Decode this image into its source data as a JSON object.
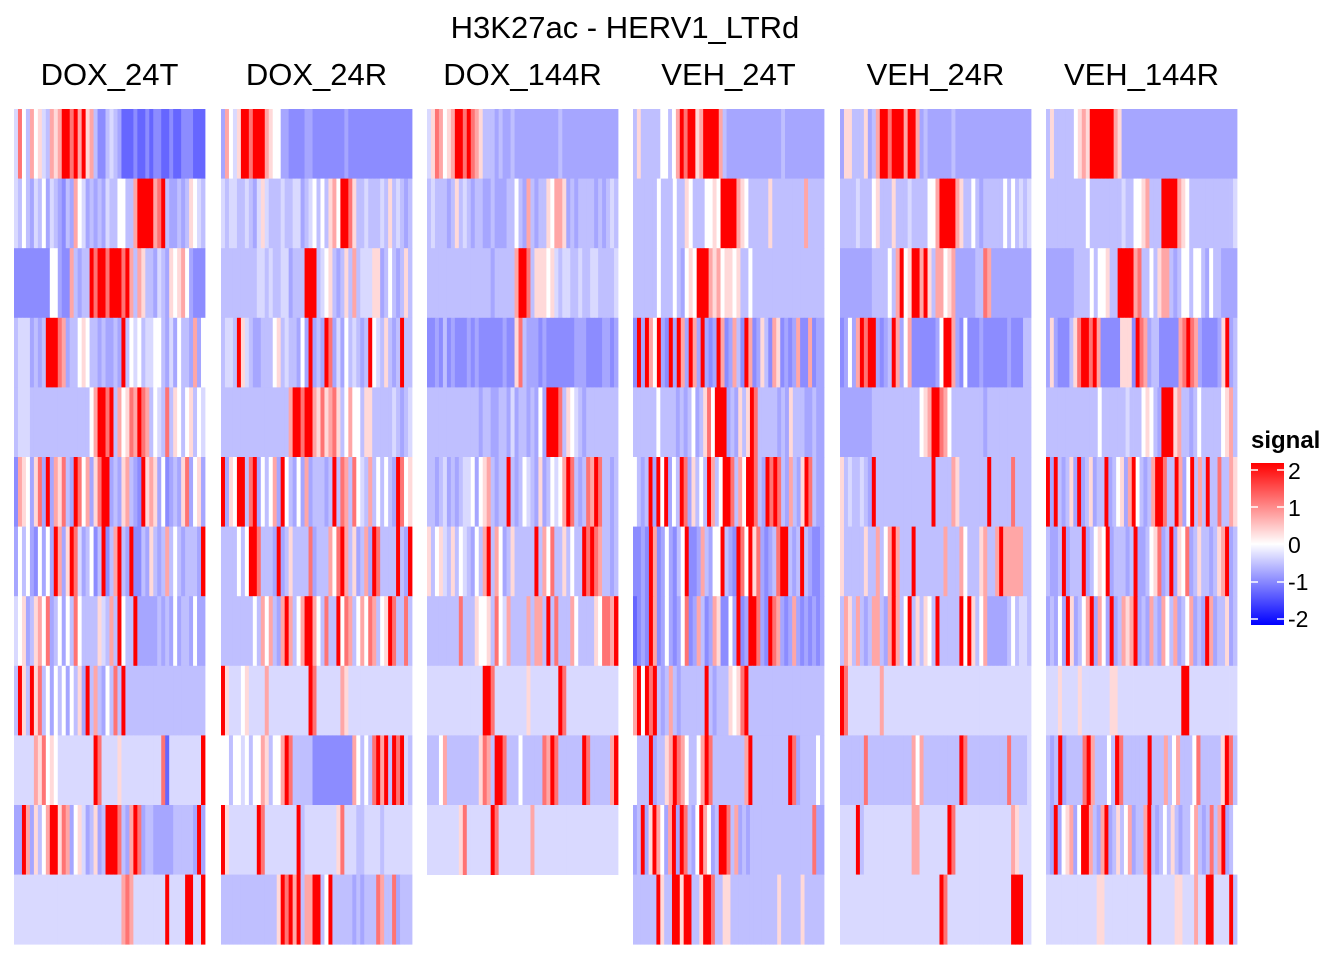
{
  "chart_data": {
    "type": "heatmap",
    "title": "H3K27ac - HERV1_LTRd",
    "legend": {
      "title": "signal",
      "ticks": [
        "2",
        "1",
        "0",
        "-1",
        "-2"
      ],
      "range": [
        -2,
        2
      ],
      "colors": {
        "low": "#0000ff",
        "mid": "#ffffff",
        "high": "#ff0000"
      },
      "placement": "right"
    },
    "level_codes": {
      "a": -1.2,
      "b": -0.9,
      "c": -0.7,
      "d": -0.5,
      "e": -0.3,
      "w": 0,
      "f": 0.3,
      "g": 0.7,
      "h": 1.1,
      "r": 2
    },
    "panels": [
      {
        "name": "DOX_24T",
        "rows": [
          "ehwdgwfedgfgrrhrgrfgdbbdedcaaabaababbaabaabbbaaa",
          "edwdcedwcedcbdcgwecdcdceddwwddgrrrrghrdccdcdfwed",
          "bbbbbbbbbwwcbbgdcddrhrrhrrrhrgdgfddcedcfwfgwcbbb",
          "deeecdcdrrrhgcddwfwddcdccdcrdwewdeewwdcecwddcgcw",
          "deeedddddddddddddddwgrrhrdgwfhgrhgdwedhdfwdwfdwe",
          "bgfwcfhcrcgfhdcrhwgcfhrrcdcfgdcbrfgfcwbcdcfhcwfc",
          "cwdwcbwcwcrgcfrhecdwbdrbdgrdcrbbdcfdcdgdwdcdddcr",
          "ewfcdfgwhcdwcwdhwddddfedgdrwddrcccccdcdcwcddcwcc",
          "drfdrfhdwcwdwcwdfcrdgdcwdhdrdddddddddddddddddddd",
          "eeeeegfhwfweeeeeeeeerheeeefeeeeeeeeeehaeeeeeeeer",
          "ccrgcfdwgrrfhgcwfecdfcdrrrhdcgrhcddcccccdddddcrc",
          "eeeeeeeeeeeeeeeeeeeeeeeeeeeghgeeeeeeeereeeerreer"
        ]
      },
      {
        "name": "DOX_24R",
        "rows": [
          "cgwefrrhrrrgfwwccbbbbccbbbbbbbbcbbbbbbbbbbbbbbbb",
          "edeeddedcefedddeddeecdewdwdfgwrrhfddedddedfdedcd",
          "dddddddddeededdeecdddrrrdewfdcdfdgdeeeffcdwdcdfd",
          "deedrfedccdddwfdeddcwcrcdcrhcecwdedcdrwedfdcdrdd",
          "dddddddddddddddddgrrhrrgfhfghfdwgwwdffdddddedcde",
          "rcfwrrdhrcwdwgcrwdcwcgcdddcdrdhgdhwedgdwdwdcrhwf",
          "ddddwdwrrhdddcrcdfddddhcdddgwhrgdfcdgcrhddddrdcr",
          "ddddddddwdgwgdcgrgdwgrrgwdhddrwhgdwgwhgdwfrhddhd",
          "rfeeewfeeeegeeeeeeeeeerheeeeeegfeeeeeeeeeeeeeeee",
          "wwdwwewdwwgfdwwgrhdddddbbbbbbbbbbgwdwdhrgrdrhred",
          "rfeeeeeeerheeeeeeeerdeeeeeeeefheeeddeeeedeeeeeee",
          "ddddddddddddddfrhrgrdggrrdwrdddddcdcdddhgddhcddd"
        ]
      },
      {
        "name": "DOX_144R",
        "rows": [
          "efhgwfgrrhrhgfdddcdccdcccccccccccdcccccccccccccc",
          "dedddcdfdedcddccdcccddwdcgdcddfwggfcdcddddcdcded",
          "ddddddddddddddddcdddddgrrhdfffwfedeeddeddeedddde",
          "bbcbdbcbbbcbcbbbbbbcbbfhdcccbcbbbbbbbcccbbbbccbc",
          "dddddddddddddcddccddcecddcdcwcrrrhdfwedcdddddddd",
          "ddcdecdcdeewcwfgdcddrdcdwedcfcdwewgrhdcdhgrhddcd",
          "fdwfedfdwedcwdgrdgwcdfdddddrdgwhddfdwddrhrhgddcd",
          "ddddddddhdddfwwfdhwegddddgdggdrdhdddgwddddfwhhgr",
          "eeeeeeeeeeeeeerrheeeeeeeefeeeeeeerheeeeeeeeeeeee",
          "dddwgddddddddfhgdrrhdddwdddddhgrhddddddrhdddddgr",
          "eeeeeeeefheeeeeerheeeeeeeegeeeeeeeeeeeeeeeeeeeee"
        ]
      },
      {
        "name": "VEH_24T",
        "rows": [
          "dfdddddwwdwgrhrrfgrrrrgdccccccccccccccdcccccccccc",
          "ddddddwdddwddfwdddwwfwrrrrgfwdddddfddddddddgdddd",
          "ddddddwdddwdcwfwrrrgfgwffwfddwdddddddddddddddddd",
          "brcrgwrcbrcrgcrgcrcbcrgbcgdbrgbcfdbgfbcbcgbbgbcc",
          "ddddddwddddcdcdwcdfhwrrrcdcfdfrhdddddcdcfdddccdcc",
          "wdcdrcrwrcwdrhcfdwdrgdwrrhdgwrrhdcrhrhdcgdcfrhdcc",
          "bbcbrgbcwcbdwrbbcgdcwwrdcbrhwrfhcbcdhrrdcdrdcbbc",
          "abcbrgbcwcbcwhbcgdbcgfbbwcrbcrrhcbrhgcbcgcbcbcbc",
          "grwrhrdcdgdcddddddrdcdddfwfhrddddddddddddddddddd",
          "wdddrcddfgrhgwddwgrhddddddddgrdddddddddrhcddddwd",
          "cdrcfrgwcgrcrhdcwrgwcdrrhdgcdcddddddddddddddddhcc",
          "ddddddrfddrrfrrddfrrhddffddddddddddddfdddddfddddd"
        ]
      },
      {
        "name": "VEH_24R",
        "rows": [
          "cffdddfcdgrrhrrrgrrgcdccccccdccccccccccccccccccc",
          "ddddedddwfdddfdddeddddwwgrrrrgfddwdcdddddwdwdede",
          "ccccccccddddwdgrwfrrgrfdggwfgcccccddhgcccccccccc",
          "bcwcgrhrrcbcdrgcwgbbbbbbcwrrgcbwbbbcbbbbbbcbbbdd",
          "ccccccccddddddddddddwfgrrhgwddddddddcddddddddddd",
          "fdeddedcrddddddddddddddrddddgfdddddddrdddddhdddd",
          "fdddddfddgdwgrgdddrdddddddgdddgwdddfgddgrgggggdd",
          "dgfdgdcdggdcgrgdwrdfdfwdrdddddrwrfdwgcccccdwdeed",
          "rheeeeeeeegeeeeeeeeeeeeeeeeeeeeeeeeeeeeeeeeeeeee",
          "ddddddhdddddddddddgwgdddddddddrhddddddddddhdddde",
          "eeeerdeeeeeeeeeeeeggeeeeeeerheeeeeeeeeeeeeegfeee",
          "eeeeeeeeeeeeeeeeeeeeeeeeerheeeeeeeeeeeeeeeerrree"
        ]
      },
      {
        "name": "VEH_144R",
        "rows": [
          "dfdddddwfgfrrrrrrgfccccccccccccccccccccccccccccc",
          "ddddddddddwddddddddeddwwfgdddrrrrgfwddddddddddde",
          "cccccccddddwdwwfddrrrrghddwdfggdcdwwdwwdcwddcccc",
          "cfcbbbdfhrrhrgbbbbbfffbrhgcddbbbbbghrhgcbbbbcfrcd",
          "dddddddddddddwddddddedddwfwdcrrrfgddcdwdddddwfgd",
          "rcrdcdfcrcdfcddrcdwfcgrwdcdgrrhddrgcwrdgdrddhddgf",
          "dccdrcdddrcdwfwrcdddcdrccdwfhcdrcfwhcdfddcdfgrcd",
          "cdcwcrfcdwgrcgwcrcdgfgrcdcgdcgwdgcdwgcdcrgcddfcd",
          "eeefeeeefeeeeeeeffeeeeeeeeeeeeeeeerreeeeeeeeeeee",
          "dcdrcddddhrgdddwdrhddddddrdddgdwgdddwhdddddfrhd",
          "dcrcwfgcwrrgdcgrcdfdwgcddgrdcdwdfdcddwgdcdhdgrcdw",
          "eeeeeeeeeeeeeffeeeeeeeeeeereeeeeeffeeegeerreeeerd"
        ]
      }
    ]
  }
}
